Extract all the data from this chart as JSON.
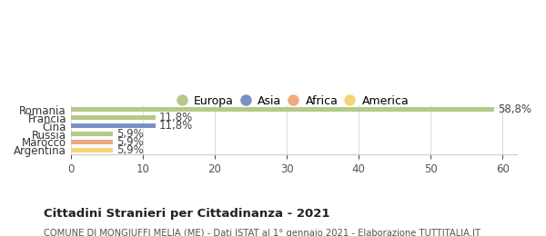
{
  "categories": [
    "Argentina",
    "Marocco",
    "Russia",
    "Cina",
    "Francia",
    "Romania"
  ],
  "values": [
    5.9,
    5.9,
    5.9,
    11.8,
    11.8,
    58.8
  ],
  "labels": [
    "5,9%",
    "5,9%",
    "5,9%",
    "11,8%",
    "11,8%",
    "58,8%"
  ],
  "colors": [
    "#f5d57a",
    "#f0a882",
    "#b5c98a",
    "#7a8fc4",
    "#b5c98a",
    "#b5c98a"
  ],
  "legend_items": [
    {
      "label": "Europa",
      "color": "#b5c98a"
    },
    {
      "label": "Asia",
      "color": "#7a8fc4"
    },
    {
      "label": "Africa",
      "color": "#f0a882"
    },
    {
      "label": "America",
      "color": "#f5d57a"
    }
  ],
  "xlim": [
    0,
    62
  ],
  "xticks": [
    0,
    10,
    20,
    30,
    40,
    50,
    60
  ],
  "title": "Cittadini Stranieri per Cittadinanza - 2021",
  "subtitle": "COMUNE DI MONGIUFFI MELIA (ME) - Dati ISTAT al 1° gennaio 2021 - Elaborazione TUTTITALIA.IT",
  "background_color": "#ffffff",
  "bar_height": 0.55
}
